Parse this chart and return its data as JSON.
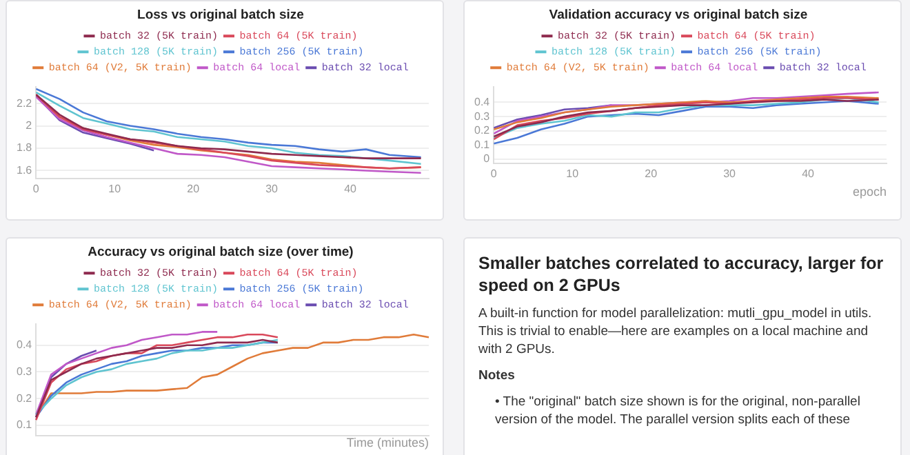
{
  "chart_data": [
    {
      "type": "line",
      "title": "Loss vs original batch size",
      "x": [
        0,
        3,
        6,
        9,
        12,
        15,
        18,
        21,
        24,
        27,
        30,
        33,
        36,
        39,
        42,
        45,
        49
      ],
      "xlim": [
        0,
        50
      ],
      "xticks": [
        0,
        10,
        20,
        30,
        40
      ],
      "ylim": [
        1.53,
        2.35
      ],
      "yticks": [
        1.6,
        1.8,
        2,
        2.2
      ],
      "grid": "y",
      "legend": "top",
      "series": [
        {
          "name": "batch 32 (5K train)",
          "color": "#8e2a4e",
          "values": [
            2.28,
            2.1,
            1.98,
            1.93,
            1.88,
            1.86,
            1.82,
            1.8,
            1.79,
            1.77,
            1.75,
            1.74,
            1.73,
            1.72,
            1.71,
            1.71,
            1.71
          ]
        },
        {
          "name": "batch 64 (5K train)",
          "color": "#d9485a",
          "values": [
            2.28,
            2.08,
            1.97,
            1.92,
            1.88,
            1.85,
            1.82,
            1.79,
            1.76,
            1.73,
            1.69,
            1.67,
            1.65,
            1.64,
            1.63,
            1.62,
            1.63
          ]
        },
        {
          "name": "batch 128 (5K train)",
          "color": "#5fc4d0",
          "values": [
            2.3,
            2.18,
            2.07,
            2.02,
            1.97,
            1.95,
            1.9,
            1.88,
            1.86,
            1.82,
            1.8,
            1.76,
            1.74,
            1.73,
            1.71,
            1.69,
            1.66
          ]
        },
        {
          "name": "batch 256 (5K train)",
          "color": "#4a78d6",
          "values": [
            2.33,
            2.24,
            2.12,
            2.04,
            2.0,
            1.97,
            1.93,
            1.9,
            1.88,
            1.85,
            1.83,
            1.82,
            1.79,
            1.77,
            1.79,
            1.74,
            1.72
          ]
        },
        {
          "name": "batch 64 (V2, 5K train)",
          "color": "#e07b39",
          "values": [
            2.28,
            2.08,
            1.98,
            1.92,
            1.87,
            1.83,
            1.81,
            1.78,
            1.76,
            1.74,
            1.7,
            1.68,
            1.67,
            1.65,
            1.63,
            1.62,
            1.63
          ]
        },
        {
          "name": "batch 64 local",
          "color": "#c058c8",
          "values": [
            2.26,
            2.06,
            1.96,
            1.9,
            1.85,
            1.8,
            1.75,
            1.74,
            1.72,
            1.68,
            1.64,
            1.63,
            1.62,
            1.61,
            1.6,
            1.59,
            1.58
          ]
        },
        {
          "name": "batch 32 local",
          "color": "#6a4cb0",
          "x": [
            0,
            3,
            6,
            9,
            12,
            15
          ],
          "values": [
            2.27,
            2.05,
            1.94,
            1.89,
            1.84,
            1.78
          ]
        }
      ]
    },
    {
      "type": "line",
      "title": "Validation accuracy vs original batch size",
      "xlabel": "epoch",
      "x": [
        0,
        3,
        6,
        9,
        12,
        15,
        18,
        21,
        24,
        27,
        30,
        33,
        36,
        39,
        42,
        45,
        49
      ],
      "xlim": [
        0,
        50
      ],
      "xticks": [
        0,
        10,
        20,
        30,
        40
      ],
      "ylim": [
        -0.03,
        0.51
      ],
      "yticks": [
        0,
        0.1,
        0.2,
        0.3,
        0.4
      ],
      "grid": "y",
      "legend": "top",
      "series": [
        {
          "name": "batch 32 (5K train)",
          "color": "#8e2a4e",
          "values": [
            0.16,
            0.23,
            0.26,
            0.3,
            0.33,
            0.34,
            0.36,
            0.37,
            0.38,
            0.38,
            0.39,
            0.4,
            0.41,
            0.41,
            0.42,
            0.41,
            0.42
          ]
        },
        {
          "name": "batch 64 (5K train)",
          "color": "#d9485a",
          "values": [
            0.14,
            0.24,
            0.27,
            0.29,
            0.32,
            0.34,
            0.36,
            0.38,
            0.39,
            0.4,
            0.39,
            0.41,
            0.41,
            0.42,
            0.43,
            0.43,
            0.42
          ]
        },
        {
          "name": "batch 128 (5K train)",
          "color": "#5fc4d0",
          "values": [
            0.15,
            0.22,
            0.25,
            0.27,
            0.31,
            0.3,
            0.33,
            0.33,
            0.36,
            0.38,
            0.38,
            0.38,
            0.39,
            0.4,
            0.42,
            0.43,
            0.4
          ]
        },
        {
          "name": "batch 256 (5K train)",
          "color": "#4a78d6",
          "values": [
            0.11,
            0.15,
            0.21,
            0.25,
            0.3,
            0.31,
            0.32,
            0.31,
            0.34,
            0.37,
            0.37,
            0.36,
            0.38,
            0.39,
            0.4,
            0.41,
            0.39
          ]
        },
        {
          "name": "batch 64 (V2, 5K train)",
          "color": "#e07b39",
          "values": [
            0.21,
            0.26,
            0.29,
            0.33,
            0.35,
            0.37,
            0.38,
            0.39,
            0.4,
            0.41,
            0.4,
            0.41,
            0.42,
            0.43,
            0.44,
            0.44,
            0.43
          ]
        },
        {
          "name": "batch 64 local",
          "color": "#c058c8",
          "values": [
            0.18,
            0.27,
            0.3,
            0.33,
            0.35,
            0.38,
            0.38,
            0.39,
            0.4,
            0.4,
            0.41,
            0.43,
            0.43,
            0.44,
            0.45,
            0.46,
            0.47
          ]
        },
        {
          "name": "batch 32 local",
          "color": "#6a4cb0",
          "x": [
            0,
            3,
            6,
            9,
            12,
            15
          ],
          "values": [
            0.22,
            0.28,
            0.31,
            0.35,
            0.36,
            0.38
          ]
        }
      ]
    },
    {
      "type": "line",
      "title": "Accuracy vs original batch size (over time)",
      "xlabel": "Time (minutes)",
      "categories": [
        null,
        null,
        null,
        null,
        null,
        null,
        null,
        null,
        null,
        null,
        null,
        null,
        null,
        null,
        null,
        null,
        null,
        null,
        null,
        null,
        null,
        null,
        null,
        null,
        null,
        null,
        null
      ],
      "ylim": [
        0.06,
        0.48
      ],
      "yticks": [
        0.1,
        0.2,
        0.3,
        0.4
      ],
      "grid": "y",
      "legend": "top",
      "tick_labels": "y",
      "series": [
        {
          "name": "batch 32 (5K train)",
          "color": "#8e2a4e",
          "values": [
            0.13,
            0.27,
            0.3,
            0.33,
            0.35,
            0.36,
            0.37,
            0.38,
            0.39,
            0.39,
            0.4,
            0.4,
            0.41,
            0.41,
            0.41,
            0.42,
            0.41,
            null,
            null,
            null,
            null,
            null,
            null,
            null,
            null,
            null,
            null
          ]
        },
        {
          "name": "batch 64 (5K train)",
          "color": "#d9485a",
          "values": [
            0.12,
            0.26,
            0.31,
            0.33,
            0.34,
            0.36,
            0.37,
            0.37,
            0.4,
            0.4,
            0.41,
            0.42,
            0.43,
            0.43,
            0.44,
            0.44,
            0.43,
            null,
            null,
            null,
            null,
            null,
            null,
            null,
            null,
            null,
            null
          ]
        },
        {
          "name": "batch 128 (5K train)",
          "color": "#5fc4d0",
          "values": [
            0.14,
            0.2,
            0.25,
            0.28,
            0.3,
            0.31,
            0.33,
            0.34,
            0.35,
            0.37,
            0.38,
            0.38,
            0.39,
            0.39,
            0.4,
            0.41,
            0.42,
            null,
            null,
            null,
            null,
            null,
            null,
            null,
            null,
            null,
            null
          ]
        },
        {
          "name": "batch 256 (5K train)",
          "color": "#4a78d6",
          "values": [
            0.13,
            0.21,
            0.26,
            0.29,
            0.31,
            0.33,
            0.34,
            0.36,
            0.37,
            0.38,
            0.38,
            0.39,
            0.39,
            0.4,
            0.4,
            0.41,
            0.41,
            null,
            null,
            null,
            null,
            null,
            null,
            null,
            null,
            null,
            null
          ]
        },
        {
          "name": "batch 64 (V2, 5K train)",
          "color": "#e07b39",
          "values": [
            0.13,
            0.22,
            0.22,
            0.22,
            0.225,
            0.225,
            0.23,
            0.23,
            0.23,
            0.235,
            0.24,
            0.28,
            0.29,
            0.32,
            0.35,
            0.37,
            0.38,
            0.39,
            0.39,
            0.41,
            0.41,
            0.42,
            0.42,
            0.43,
            0.43,
            0.44,
            0.43
          ]
        },
        {
          "name": "batch 64 local",
          "color": "#c058c8",
          "values": [
            0.14,
            0.29,
            0.33,
            0.35,
            0.37,
            0.39,
            0.4,
            0.42,
            0.43,
            0.44,
            0.44,
            0.45,
            0.45,
            null,
            null,
            null,
            null,
            null,
            null,
            null,
            null,
            null,
            null,
            null,
            null,
            null,
            null
          ]
        },
        {
          "name": "batch 32 local",
          "color": "#6a4cb0",
          "values": [
            0.13,
            0.28,
            0.33,
            0.36,
            0.38,
            null,
            null,
            null,
            null,
            null,
            null,
            null,
            null,
            null,
            null,
            null,
            null,
            null,
            null,
            null,
            null,
            null,
            null,
            null,
            null,
            null,
            null
          ]
        }
      ]
    },
    {
      "type": "other",
      "title": "Smaller batches correlated to accuracy, larger for speed on 2 GPUs",
      "annotations": [
        "A built-in function for model parallelization: mutli_gpu_model in utils. This is trivial to enable—here are examples on a local machine and with 2 GPUs.",
        "Notes",
        "• The \"original\" batch size shown is for the original, non-parallel version of the model. The parallel version splits each of these"
      ]
    }
  ]
}
